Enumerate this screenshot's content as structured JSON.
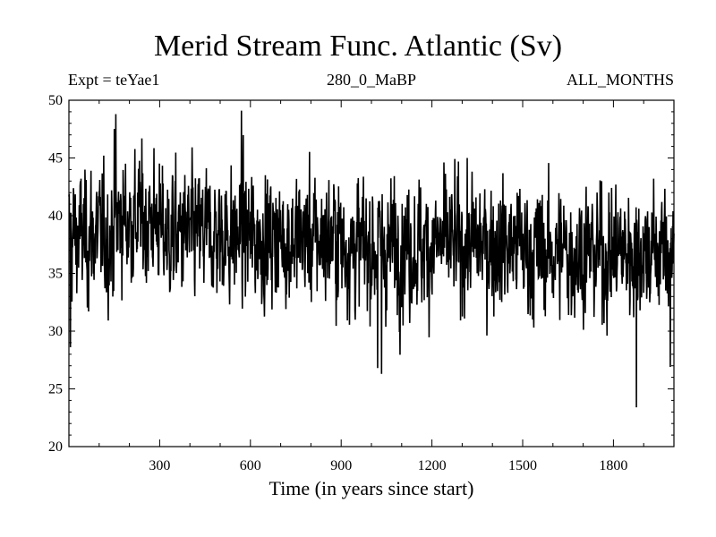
{
  "chart_data": {
    "type": "line",
    "title": "Merid Stream Func. Atlantic (Sv)",
    "subtitle_left": "Expt = teYae1",
    "subtitle_center": "280_0_MaBP",
    "subtitle_right": "ALL_MONTHS",
    "xlabel": "Time (in years since start)",
    "ylabel": "",
    "xlim": [
      0,
      2000
    ],
    "ylim": [
      20,
      50
    ],
    "xticks": [
      300,
      600,
      900,
      1200,
      1500,
      1800
    ],
    "yticks": [
      20,
      25,
      30,
      35,
      40,
      45,
      50
    ],
    "grid": false,
    "series": [
      {
        "name": "Merid Stream Func. Atlantic",
        "color": "#000000",
        "generator": {
          "n_points": 2000,
          "mean": 37.6,
          "std": 2.9,
          "seed": 12345,
          "segments": [
            {
              "from": 0,
              "to": 150,
              "mean": 38.2
            },
            {
              "from": 150,
              "to": 300,
              "mean": 39.6
            },
            {
              "from": 300,
              "to": 600,
              "mean": 38.3
            },
            {
              "from": 600,
              "to": 900,
              "mean": 38.0
            },
            {
              "from": 900,
              "to": 1200,
              "mean": 37.3
            },
            {
              "from": 1200,
              "to": 1500,
              "mean": 37.5
            },
            {
              "from": 1500,
              "to": 1800,
              "mean": 36.8
            },
            {
              "from": 1800,
              "to": 2000,
              "mean": 37.0
            }
          ]
        },
        "notable_points": [
          {
            "x": 155,
            "y": 48.8
          },
          {
            "x": 570,
            "y": 49.1
          },
          {
            "x": 1020,
            "y": 26.8
          },
          {
            "x": 1033,
            "y": 26.3
          },
          {
            "x": 1875,
            "y": 23.4
          },
          {
            "x": 1987,
            "y": 26.9
          },
          {
            "x": 5,
            "y": 28.6
          }
        ]
      }
    ]
  }
}
